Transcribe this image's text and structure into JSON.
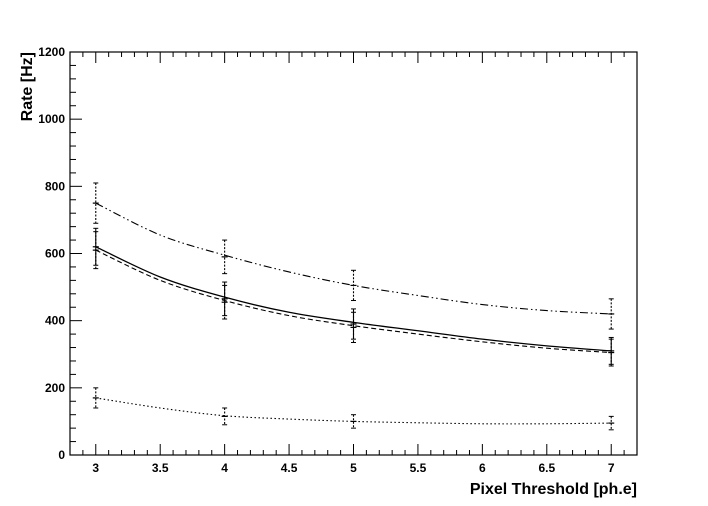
{
  "chart_data": {
    "type": "line",
    "title": "",
    "xlabel": "Pixel Threshold [ph.e]",
    "ylabel": "Rate [Hz]",
    "xlim": [
      2.8,
      7.2
    ],
    "ylim": [
      0,
      1200
    ],
    "x_ticks": [
      "3",
      "3.5",
      "4",
      "4.5",
      "5",
      "5.5",
      "6",
      "6.5",
      "7"
    ],
    "y_ticks": [
      "0",
      "200",
      "400",
      "600",
      "800",
      "1000",
      "1200"
    ],
    "grid": false,
    "legend": "none",
    "series": [
      {
        "style": "solid",
        "x": [
          3,
          4,
          5,
          7
        ],
        "y": [
          620,
          465,
          390,
          310
        ],
        "err": [
          55,
          50,
          45,
          40
        ],
        "curve": [
          [
            3,
            620
          ],
          [
            3.5,
            530
          ],
          [
            4,
            470
          ],
          [
            4.5,
            425
          ],
          [
            5,
            395
          ],
          [
            5.5,
            370
          ],
          [
            6,
            345
          ],
          [
            6.5,
            325
          ],
          [
            7,
            310
          ]
        ]
      },
      {
        "style": "dashed",
        "x": [
          3,
          4,
          5,
          7
        ],
        "y": [
          610,
          455,
          380,
          305
        ],
        "err": [
          55,
          50,
          45,
          40
        ],
        "curve": [
          [
            3,
            610
          ],
          [
            3.5,
            520
          ],
          [
            4,
            460
          ],
          [
            4.5,
            415
          ],
          [
            5,
            385
          ],
          [
            5.5,
            360
          ],
          [
            6,
            337
          ],
          [
            6.5,
            318
          ],
          [
            7,
            305
          ]
        ]
      },
      {
        "style": "dash-dot",
        "x": [
          3,
          4,
          5,
          7
        ],
        "y": [
          750,
          590,
          505,
          420
        ],
        "err": [
          60,
          50,
          45,
          45
        ],
        "curve": [
          [
            3,
            750
          ],
          [
            3.5,
            655
          ],
          [
            4,
            595
          ],
          [
            4.5,
            545
          ],
          [
            5,
            505
          ],
          [
            5.5,
            475
          ],
          [
            6,
            448
          ],
          [
            6.5,
            430
          ],
          [
            7,
            420
          ]
        ]
      },
      {
        "style": "dotted",
        "x": [
          3,
          4,
          5,
          7
        ],
        "y": [
          170,
          115,
          100,
          95
        ],
        "err": [
          30,
          25,
          20,
          20
        ],
        "curve": [
          [
            3,
            170
          ],
          [
            3.5,
            140
          ],
          [
            4,
            117
          ],
          [
            4.5,
            107
          ],
          [
            5,
            100
          ],
          [
            5.5,
            96
          ],
          [
            6,
            93
          ],
          [
            6.5,
            93
          ],
          [
            7,
            95
          ]
        ]
      }
    ]
  }
}
